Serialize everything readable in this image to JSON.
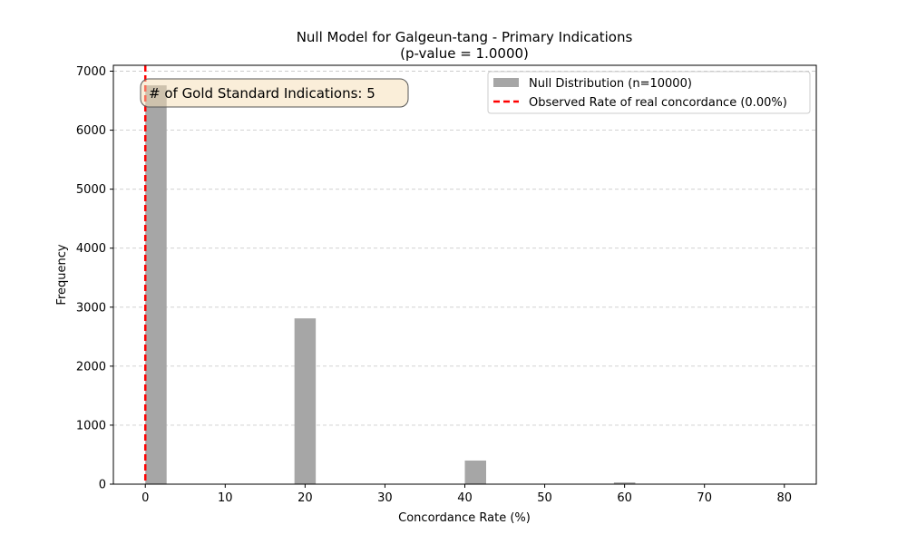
{
  "chart_data": {
    "type": "bar",
    "title": "Null Model for Galgeun-tang - Primary Indications",
    "subtitle": "(p-value = 1.0000)",
    "xlabel": "Concordance Rate (%)",
    "ylabel": "Frequency",
    "xlim": [
      -4,
      84
    ],
    "ylim": [
      0,
      7100
    ],
    "xticks": [
      0,
      10,
      20,
      30,
      40,
      50,
      60,
      70,
      80
    ],
    "yticks": [
      0,
      1000,
      2000,
      3000,
      4000,
      5000,
      6000,
      7000
    ],
    "grid": "y-dashed",
    "legend_position": "top-right",
    "annotation": "# of Gold Standard Indications: 5",
    "series": [
      {
        "name": "Null Distribution (n=10000)",
        "kind": "histogram",
        "color": "#a6a6a6",
        "bin_width": 2.667,
        "bins": [
          {
            "x": 0,
            "count": 6760
          },
          {
            "x": 18.67,
            "count": 2810
          },
          {
            "x": 40,
            "count": 400
          },
          {
            "x": 58.67,
            "count": 30
          }
        ]
      },
      {
        "name": "Observed Rate of real concordance (0.00%)",
        "kind": "vline",
        "color": "#ff0000",
        "x": 0
      }
    ]
  }
}
